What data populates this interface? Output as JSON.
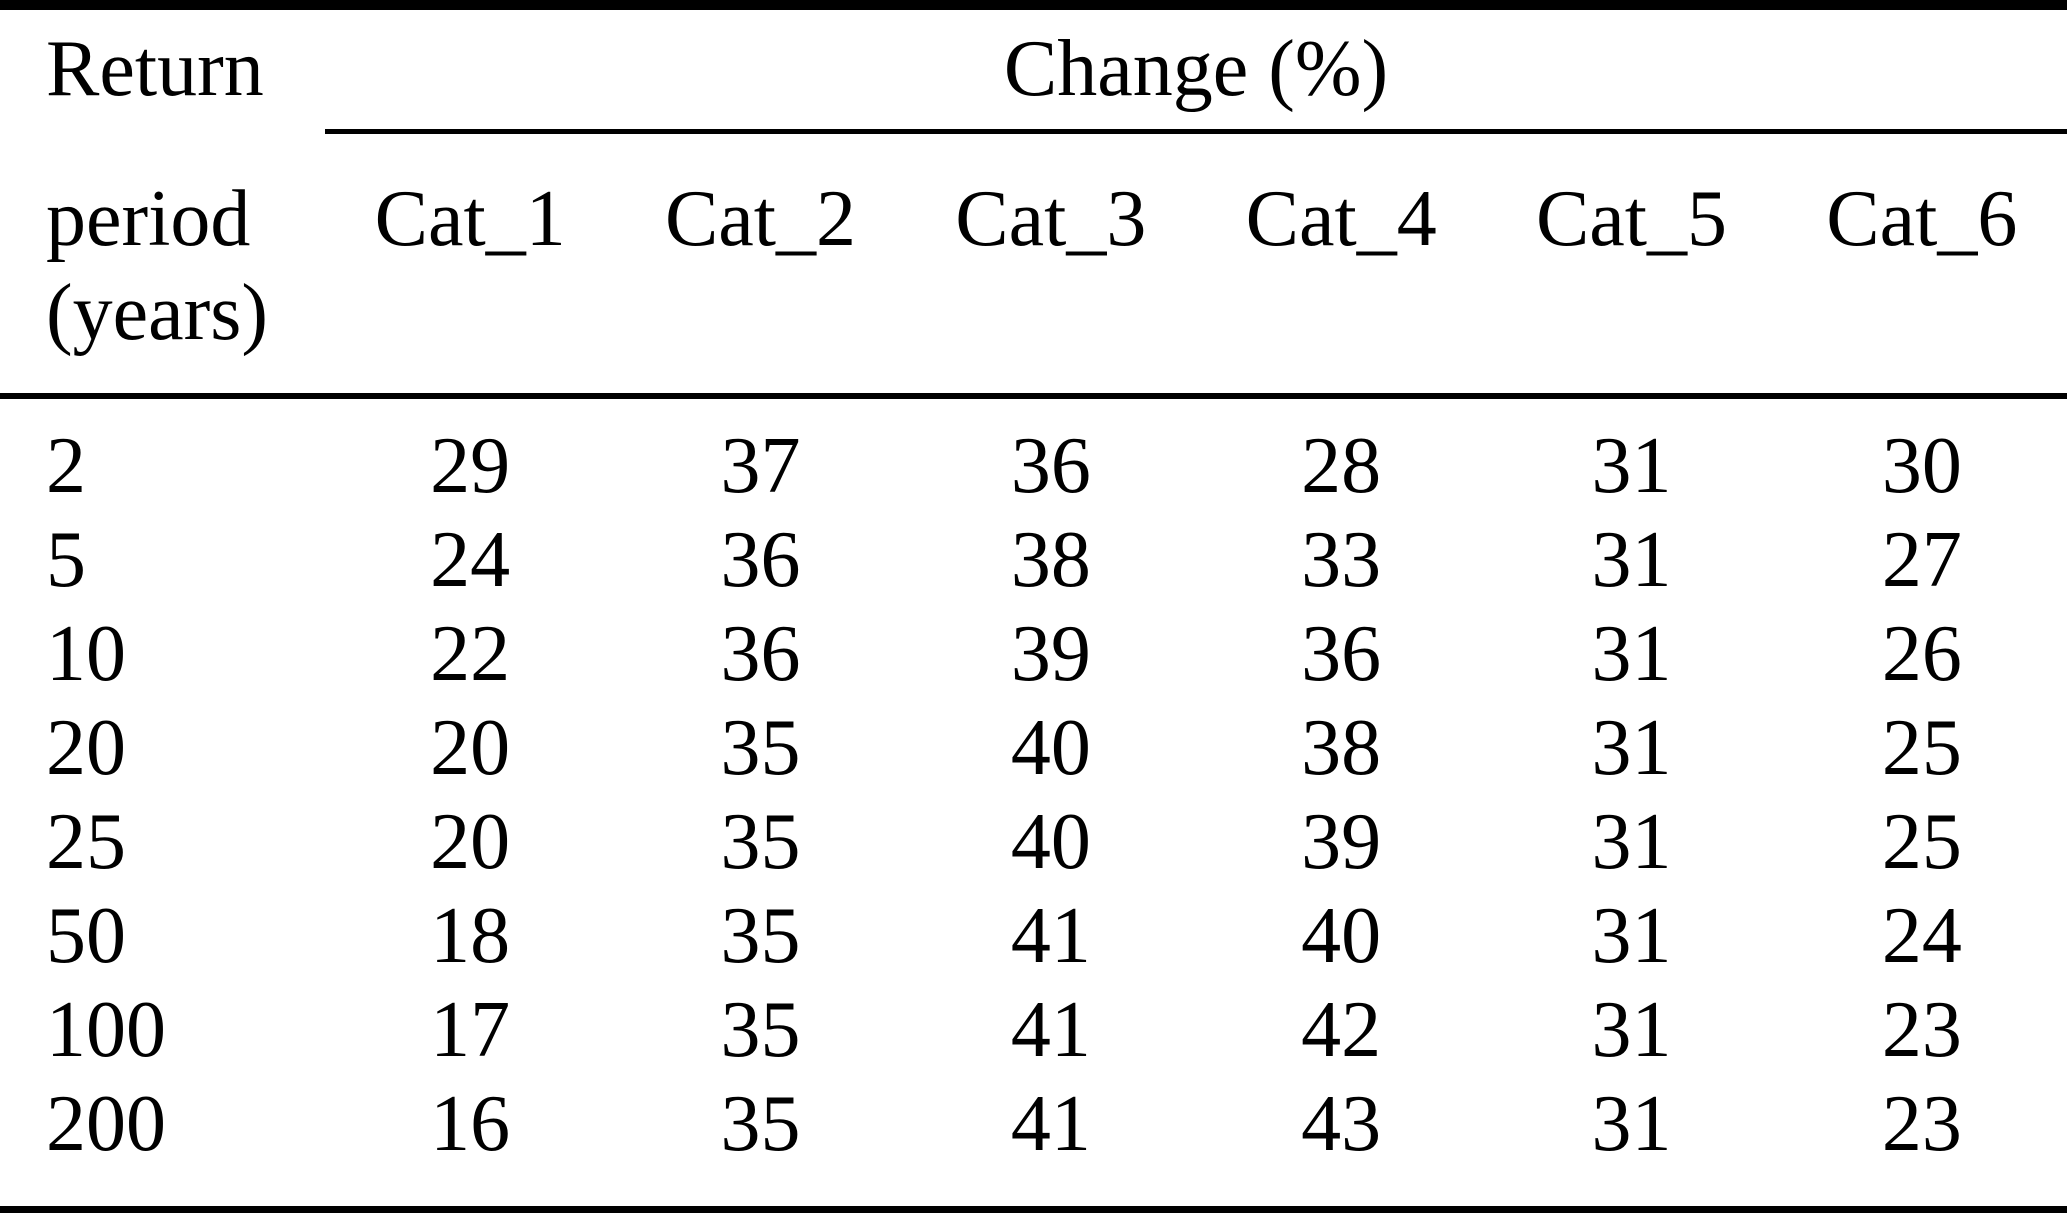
{
  "page": {
    "background": "#ffffff",
    "text_color": "#000000",
    "rule_color": "#000000"
  },
  "table": {
    "stub_header_lines": [
      "Return",
      "period",
      "(years)"
    ],
    "group_header": "Change (%)",
    "column_headers": [
      "Cat_1",
      "Cat_2",
      "Cat_3",
      "Cat_4",
      "Cat_5",
      "Cat_6"
    ],
    "rows": [
      {
        "period": "2",
        "values": [
          "29",
          "37",
          "36",
          "28",
          "31",
          "30"
        ]
      },
      {
        "period": "5",
        "values": [
          "24",
          "36",
          "38",
          "33",
          "31",
          "27"
        ]
      },
      {
        "period": "10",
        "values": [
          "22",
          "36",
          "39",
          "36",
          "31",
          "26"
        ]
      },
      {
        "period": "20",
        "values": [
          "20",
          "35",
          "40",
          "38",
          "31",
          "25"
        ]
      },
      {
        "period": "25",
        "values": [
          "20",
          "35",
          "40",
          "39",
          "31",
          "25"
        ]
      },
      {
        "period": "50",
        "values": [
          "18",
          "35",
          "41",
          "40",
          "31",
          "24"
        ]
      },
      {
        "period": "100",
        "values": [
          "17",
          "35",
          "41",
          "42",
          "31",
          "23"
        ]
      },
      {
        "period": "200",
        "values": [
          "16",
          "35",
          "41",
          "43",
          "31",
          "23"
        ]
      }
    ]
  },
  "chart_data": {
    "type": "table",
    "title": "Change (%) by return period",
    "row_label": "Return period (years)",
    "group_label": "Change (%)",
    "row_categories": [
      2,
      5,
      10,
      20,
      25,
      50,
      100,
      200
    ],
    "series": [
      {
        "name": "Cat_1",
        "values": [
          29,
          24,
          22,
          20,
          20,
          18,
          17,
          16
        ]
      },
      {
        "name": "Cat_2",
        "values": [
          37,
          36,
          36,
          35,
          35,
          35,
          35,
          35
        ]
      },
      {
        "name": "Cat_3",
        "values": [
          36,
          38,
          39,
          40,
          40,
          41,
          41,
          41
        ]
      },
      {
        "name": "Cat_4",
        "values": [
          28,
          33,
          36,
          38,
          39,
          40,
          42,
          43
        ]
      },
      {
        "name": "Cat_5",
        "values": [
          31,
          31,
          31,
          31,
          31,
          31,
          31,
          31
        ]
      },
      {
        "name": "Cat_6",
        "values": [
          30,
          27,
          26,
          25,
          25,
          24,
          23,
          23
        ]
      }
    ]
  }
}
